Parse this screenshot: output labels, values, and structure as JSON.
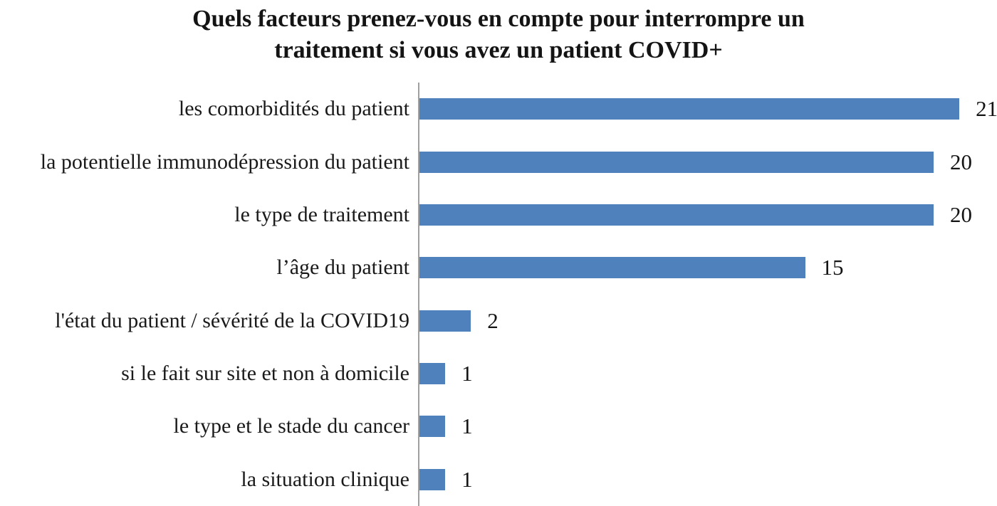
{
  "title": "Quels facteurs prenez-vous en compte pour interrompre un traitement si vous avez un patient COVID+",
  "chart_data": {
    "type": "bar",
    "orientation": "horizontal",
    "title": "Quels facteurs prenez-vous en compte pour interrompre un traitement si vous avez un patient COVID+",
    "categories": [
      "les comorbidités du patient",
      "la potentielle immunodépression du patient",
      "le type de traitement",
      "l’âge du patient",
      "l'état du patient / sévérité de la COVID19",
      "si le fait sur site et non à domicile",
      "le type et le stade du cancer",
      "la situation clinique"
    ],
    "values": [
      21,
      20,
      20,
      15,
      2,
      1,
      1,
      1
    ],
    "value_labels_shown": true,
    "xlabel": "",
    "ylabel": "",
    "xlim": [
      0,
      22
    ],
    "grid": false,
    "legend": false,
    "colors": {
      "bar": "#4F81BD",
      "axis": "#A0A0A0",
      "text": "#1A1A1A"
    }
  }
}
